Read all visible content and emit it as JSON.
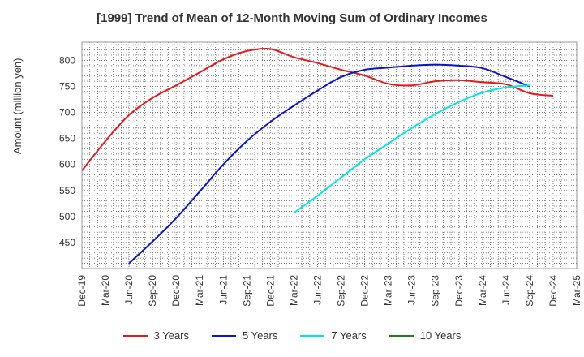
{
  "chart_data": {
    "type": "line",
    "title": "[1999]  Trend of Mean of 12-Month Moving Sum of Ordinary Incomes",
    "xlabel": "",
    "ylabel": "Amount (million yen)",
    "ylim": [
      400,
      835
    ],
    "yticks": [
      450,
      500,
      550,
      600,
      650,
      700,
      750,
      800
    ],
    "categories": [
      "Dec-19",
      "Mar-20",
      "Jun-20",
      "Sep-20",
      "Dec-20",
      "Mar-21",
      "Jun-21",
      "Sep-21",
      "Dec-21",
      "Mar-22",
      "Jun-22",
      "Sep-22",
      "Dec-22",
      "Mar-23",
      "Jun-23",
      "Sep-23",
      "Dec-23",
      "Mar-24",
      "Jun-24",
      "Sep-24",
      "Dec-24",
      "Mar-25"
    ],
    "series": [
      {
        "name": "3 Years",
        "color": "#e31a1c",
        "values": [
          588,
          645,
          695,
          728,
          752,
          777,
          802,
          818,
          822,
          806,
          795,
          782,
          771,
          755,
          752,
          760,
          762,
          758,
          754,
          737,
          732,
          null
        ]
      },
      {
        "name": "5 Years",
        "color": "#0a14c8",
        "values": [
          null,
          null,
          410,
          452,
          497,
          548,
          600,
          645,
          682,
          713,
          742,
          768,
          782,
          786,
          790,
          792,
          790,
          785,
          768,
          750,
          null,
          null
        ]
      },
      {
        "name": "7 Years",
        "color": "#00e5e5",
        "values": [
          null,
          null,
          null,
          null,
          null,
          null,
          null,
          null,
          null,
          507,
          540,
          575,
          610,
          640,
          670,
          697,
          720,
          738,
          748,
          752,
          null,
          null
        ]
      },
      {
        "name": "10 Years",
        "color": "#1a7f1a",
        "values": [
          null,
          null,
          null,
          null,
          null,
          null,
          null,
          null,
          null,
          null,
          null,
          null,
          null,
          null,
          null,
          null,
          null,
          null,
          null,
          null,
          null,
          null
        ]
      }
    ],
    "grid": true,
    "legend": "bottom"
  }
}
